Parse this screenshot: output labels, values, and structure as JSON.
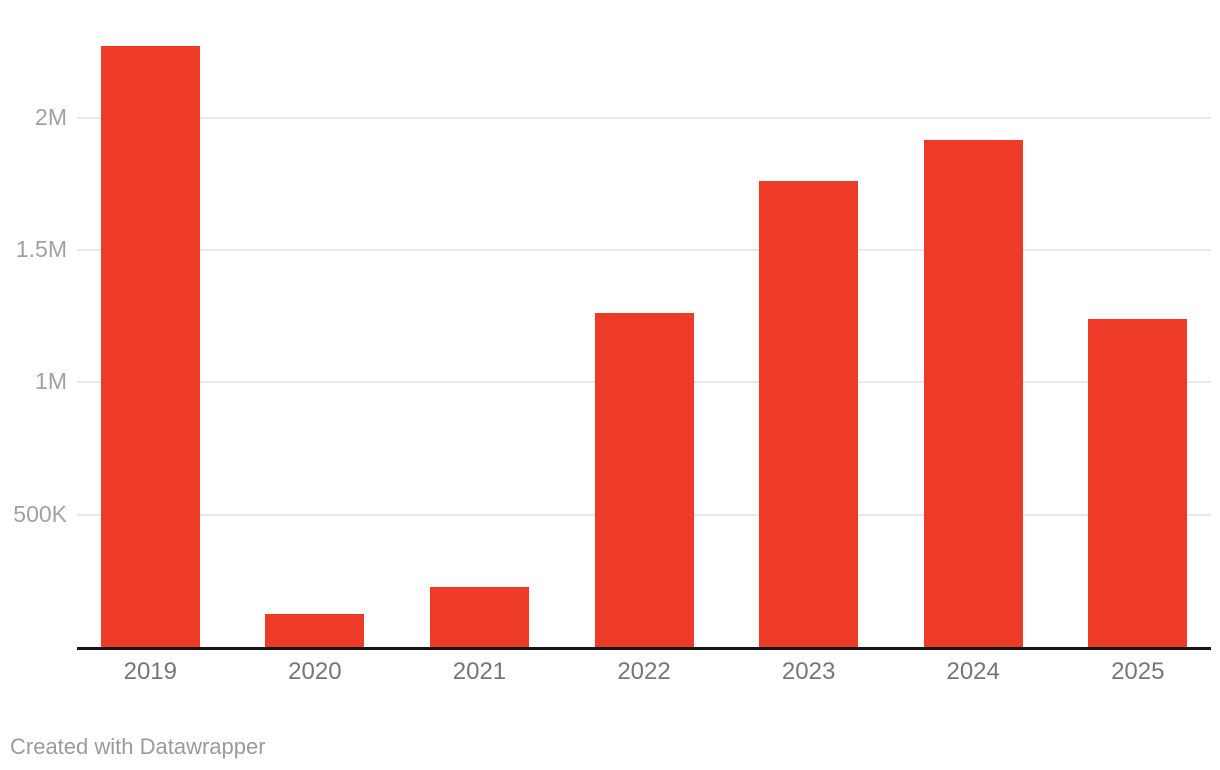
{
  "chart_data": {
    "type": "bar",
    "categories": [
      "2019",
      "2020",
      "2021",
      "2022",
      "2023",
      "2024",
      "2025"
    ],
    "values": [
      2270000,
      125000,
      227000,
      1263000,
      1761000,
      1916000,
      1240000
    ],
    "title": "",
    "xlabel": "",
    "ylabel": "",
    "ylim": [
      0,
      2445000
    ],
    "yticks": [
      {
        "value": 2000000,
        "label": "2M"
      },
      {
        "value": 1500000,
        "label": "1.5M"
      },
      {
        "value": 1000000,
        "label": "1M"
      },
      {
        "value": 500000,
        "label": "500K"
      }
    ],
    "grid": "horizontal-only",
    "legend_position": "none",
    "bar_color": "#ee3b28"
  },
  "colors": {
    "bar": "#ee3b28",
    "gridline": "#e9e9e9",
    "axis_line": "#151515",
    "ytick_text": "#a1a1a1",
    "xtick_text": "#767676",
    "footer_text": "#9b9b9b",
    "background": "#ffffff"
  },
  "footer": {
    "attribution": "Created with Datawrapper"
  }
}
